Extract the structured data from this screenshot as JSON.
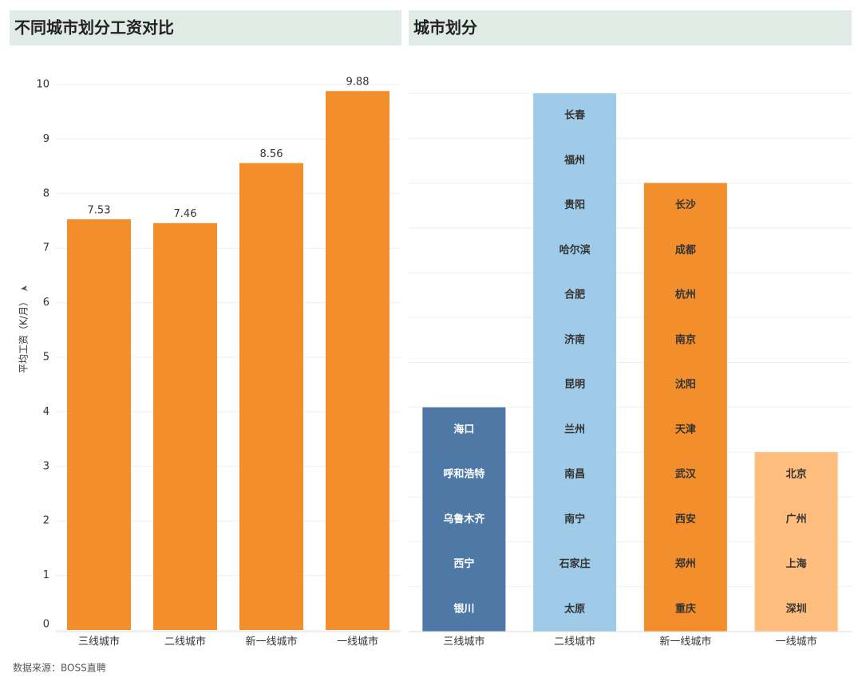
{
  "left": {
    "chart_data": {
      "type": "bar",
      "title": "不同城市划分工资对比",
      "y_label": "平均工资（K/月）",
      "categories": [
        "三线城市",
        "二线城市",
        "新一线城市",
        "一线城市"
      ],
      "values": [
        7.53,
        7.46,
        8.56,
        9.88
      ],
      "color": "#f28e2b",
      "ylim": [
        0,
        10.3
      ],
      "yticks": [
        0,
        1,
        2,
        3,
        4,
        5,
        6,
        7,
        8,
        9,
        10
      ],
      "grid": true
    }
  },
  "right": {
    "chart_data": {
      "type": "stacked-list",
      "title": "城市划分",
      "groups": [
        {
          "name": "三线城市",
          "color": "#4e79a7",
          "cities": [
            "海口",
            "呼和浩特",
            "乌鲁木齐",
            "西宁",
            "银川"
          ]
        },
        {
          "name": "二线城市",
          "color": "#a0cbe8",
          "cities": [
            "长春",
            "福州",
            "贵阳",
            "哈尔滨",
            "合肥",
            "济南",
            "昆明",
            "兰州",
            "南昌",
            "南宁",
            "石家庄",
            "太原"
          ]
        },
        {
          "name": "新一线城市",
          "color": "#f28e2b",
          "cities": [
            "长沙",
            "成都",
            "杭州",
            "南京",
            "沈阳",
            "天津",
            "武汉",
            "西安",
            "郑州",
            "重庆"
          ]
        },
        {
          "name": "一线城市",
          "color": "#ffbe7d",
          "cities": [
            "北京",
            "广州",
            "上海",
            "深圳"
          ]
        }
      ]
    }
  },
  "footer": {
    "source": "数据来源：BOSS直聘"
  }
}
